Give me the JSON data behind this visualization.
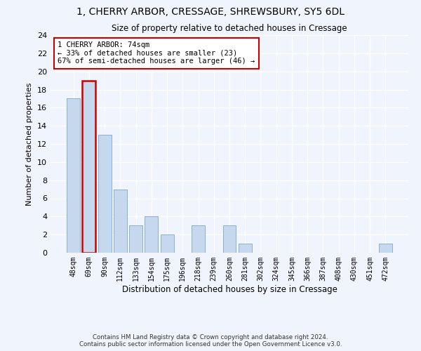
{
  "title_line1": "1, CHERRY ARBOR, CRESSAGE, SHREWSBURY, SY5 6DL",
  "title_line2": "Size of property relative to detached houses in Cressage",
  "xlabel": "Distribution of detached houses by size in Cressage",
  "ylabel": "Number of detached properties",
  "bar_color": "#c5d8ed",
  "bar_edge_color": "#8ab0d0",
  "highlight_bar_edge_color": "#cc0000",
  "categories": [
    "48sqm",
    "69sqm",
    "90sqm",
    "112sqm",
    "133sqm",
    "154sqm",
    "175sqm",
    "196sqm",
    "218sqm",
    "239sqm",
    "260sqm",
    "281sqm",
    "302sqm",
    "324sqm",
    "345sqm",
    "366sqm",
    "387sqm",
    "408sqm",
    "430sqm",
    "451sqm",
    "472sqm"
  ],
  "values": [
    17,
    19,
    13,
    7,
    3,
    4,
    2,
    0,
    3,
    0,
    3,
    1,
    0,
    0,
    0,
    0,
    0,
    0,
    0,
    0,
    1
  ],
  "highlight_index": 1,
  "annotation_text": "1 CHERRY ARBOR: 74sqm\n← 33% of detached houses are smaller (23)\n67% of semi-detached houses are larger (46) →",
  "ylim": [
    0,
    24
  ],
  "yticks": [
    0,
    2,
    4,
    6,
    8,
    10,
    12,
    14,
    16,
    18,
    20,
    22,
    24
  ],
  "footer_line1": "Contains HM Land Registry data © Crown copyright and database right 2024.",
  "footer_line2": "Contains public sector information licensed under the Open Government Licence v3.0.",
  "background_color": "#f0f4fc",
  "plot_bg_color": "#f0f4fc"
}
